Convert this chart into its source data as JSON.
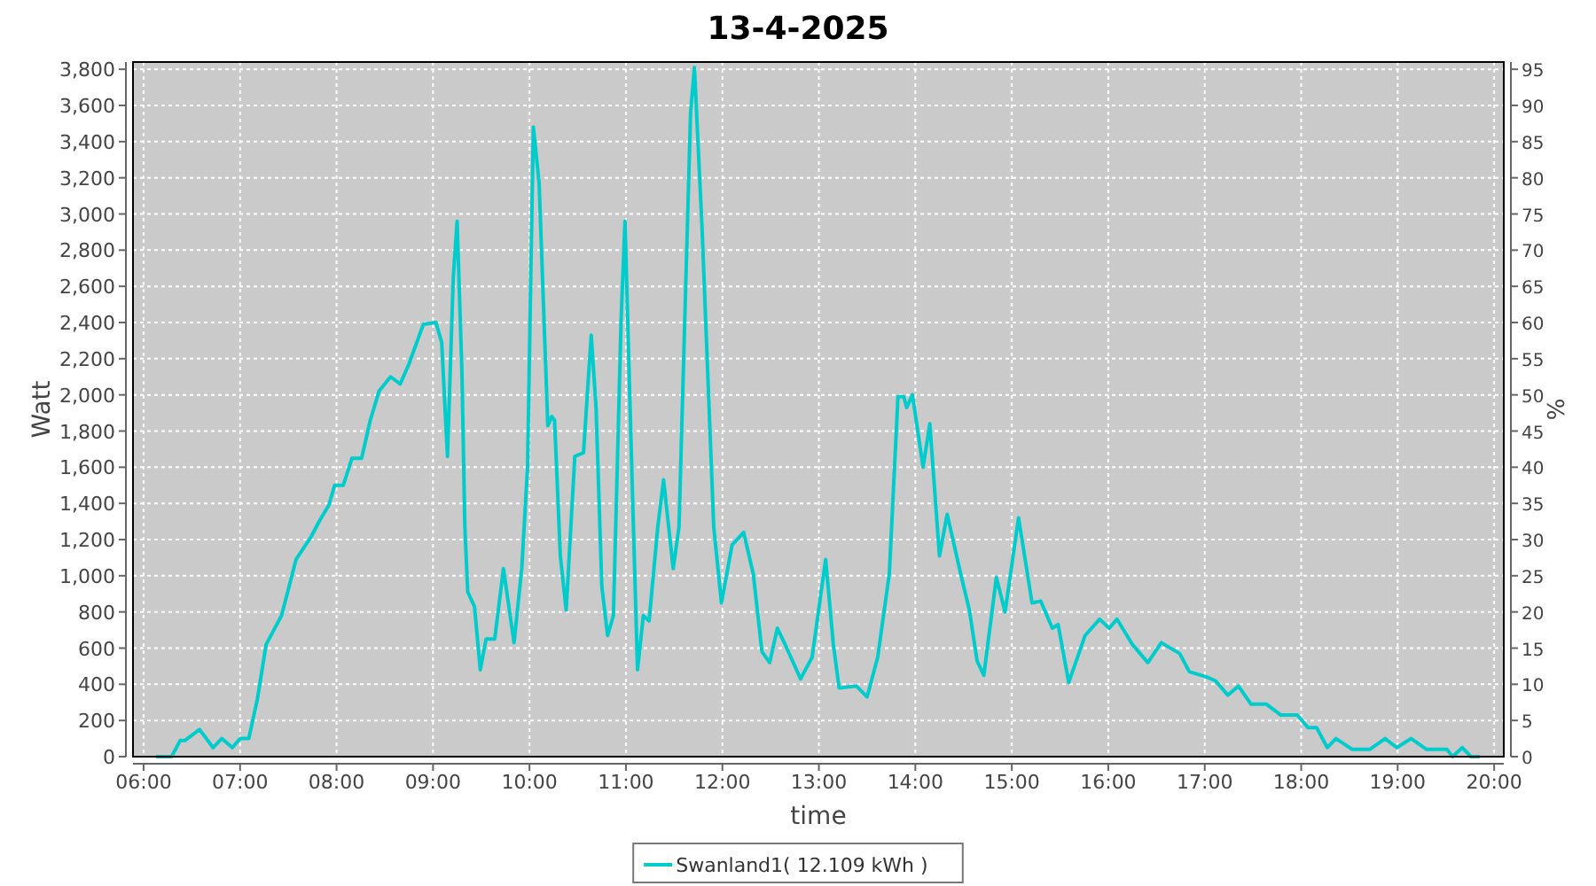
{
  "chart_data": {
    "type": "line",
    "title": "13-4-2025",
    "xlabel": "time",
    "ylabel": "Watt",
    "y2label": "%",
    "xlim": [
      5.89,
      20.1
    ],
    "ylim": [
      0,
      3840
    ],
    "y2lim": [
      0,
      96
    ],
    "xticks": [
      {
        "value": 6,
        "label": "06:00"
      },
      {
        "value": 7,
        "label": "07:00"
      },
      {
        "value": 8,
        "label": "08:00"
      },
      {
        "value": 9,
        "label": "09:00"
      },
      {
        "value": 10,
        "label": "10:00"
      },
      {
        "value": 11,
        "label": "11:00"
      },
      {
        "value": 12,
        "label": "12:00"
      },
      {
        "value": 13,
        "label": "13:00"
      },
      {
        "value": 14,
        "label": "14:00"
      },
      {
        "value": 15,
        "label": "15:00"
      },
      {
        "value": 16,
        "label": "16:00"
      },
      {
        "value": 17,
        "label": "17:00"
      },
      {
        "value": 18,
        "label": "18:00"
      },
      {
        "value": 19,
        "label": "19:00"
      },
      {
        "value": 20,
        "label": "20:00"
      }
    ],
    "yticks": [
      0,
      200,
      400,
      600,
      800,
      {
        "value": 1000,
        "label": "1,000"
      },
      {
        "value": 1200,
        "label": "1,200"
      },
      {
        "value": 1400,
        "label": "1,400"
      },
      {
        "value": 1600,
        "label": "1,600"
      },
      {
        "value": 1800,
        "label": "1,800"
      },
      {
        "value": 2000,
        "label": "2,000"
      },
      {
        "value": 2200,
        "label": "2,200"
      },
      {
        "value": 2400,
        "label": "2,400"
      },
      {
        "value": 2600,
        "label": "2,600"
      },
      {
        "value": 2800,
        "label": "2,800"
      },
      {
        "value": 3000,
        "label": "3,000"
      },
      {
        "value": 3200,
        "label": "3,200"
      },
      {
        "value": 3400,
        "label": "3,400"
      },
      {
        "value": 3600,
        "label": "3,600"
      },
      {
        "value": 3800,
        "label": "3,800"
      }
    ],
    "y2ticks": [
      0,
      5,
      10,
      15,
      20,
      25,
      30,
      35,
      40,
      45,
      50,
      55,
      60,
      65,
      70,
      75,
      80,
      85,
      90,
      95
    ],
    "grid": true,
    "legend": "bottom",
    "marker": "none",
    "line_style": "solid",
    "series": [
      {
        "name": "Swanland1( 12.109 kWh )",
        "color": "#00cccc",
        "x": [
          6.13,
          6.29,
          6.38,
          6.43,
          6.58,
          6.72,
          6.81,
          6.92,
          7.0,
          7.09,
          7.18,
          7.27,
          7.43,
          7.58,
          7.73,
          7.83,
          7.92,
          7.98,
          8.07,
          8.16,
          8.26,
          8.35,
          8.44,
          8.56,
          8.66,
          8.75,
          8.9,
          9.03,
          9.09,
          9.15,
          9.21,
          9.25,
          9.3,
          9.33,
          9.36,
          9.43,
          9.49,
          9.55,
          9.64,
          9.73,
          9.84,
          9.92,
          9.98,
          10.04,
          10.1,
          10.19,
          10.23,
          10.26,
          10.32,
          10.38,
          10.47,
          10.56,
          10.64,
          10.69,
          10.75,
          10.81,
          10.87,
          10.95,
          10.99,
          11.06,
          11.12,
          11.18,
          11.24,
          11.33,
          11.39,
          11.49,
          11.55,
          11.61,
          11.67,
          11.71,
          11.79,
          11.85,
          11.91,
          11.99,
          12.1,
          12.22,
          12.32,
          12.41,
          12.49,
          12.57,
          12.65,
          12.81,
          12.93,
          13.07,
          13.15,
          13.21,
          13.39,
          13.5,
          13.61,
          13.73,
          13.82,
          13.88,
          13.91,
          13.97,
          14.08,
          14.15,
          14.25,
          14.33,
          14.47,
          14.56,
          14.64,
          14.71,
          14.84,
          14.93,
          15.07,
          15.21,
          15.3,
          15.42,
          15.48,
          15.59,
          15.76,
          15.91,
          16.01,
          16.09,
          16.25,
          16.41,
          16.55,
          16.74,
          16.84,
          17.02,
          17.11,
          17.24,
          17.35,
          17.48,
          17.64,
          17.79,
          17.96,
          18.07,
          18.16,
          18.27,
          18.36,
          18.53,
          18.71,
          18.87,
          18.99,
          19.14,
          19.3,
          19.51,
          19.57,
          19.67,
          19.76,
          19.85
        ],
        "values": [
          0,
          0,
          90,
          90,
          150,
          50,
          100,
          50,
          100,
          100,
          320,
          620,
          780,
          1090,
          1210,
          1310,
          1390,
          1500,
          1500,
          1650,
          1650,
          1860,
          2020,
          2100,
          2060,
          2170,
          2390,
          2400,
          2290,
          1660,
          2650,
          2960,
          2120,
          1270,
          910,
          830,
          480,
          650,
          650,
          1040,
          630,
          1040,
          1600,
          3480,
          3170,
          1830,
          1880,
          1860,
          1110,
          810,
          1660,
          1680,
          2330,
          1930,
          940,
          670,
          780,
          2420,
          2960,
          1600,
          480,
          780,
          750,
          1270,
          1530,
          1040,
          1270,
          2420,
          3560,
          3810,
          2910,
          2090,
          1270,
          850,
          1170,
          1240,
          1010,
          580,
          520,
          710,
          620,
          430,
          550,
          1090,
          620,
          380,
          390,
          330,
          550,
          1010,
          1990,
          1990,
          1930,
          2000,
          1600,
          1840,
          1110,
          1340,
          1010,
          810,
          530,
          450,
          990,
          800,
          1320,
          850,
          860,
          710,
          730,
          410,
          670,
          760,
          710,
          760,
          620,
          520,
          630,
          570,
          470,
          440,
          420,
          340,
          390,
          290,
          290,
          230,
          230,
          160,
          160,
          50,
          100,
          40,
          40,
          100,
          50,
          100,
          40,
          40,
          0,
          50,
          0,
          0
        ]
      }
    ]
  }
}
